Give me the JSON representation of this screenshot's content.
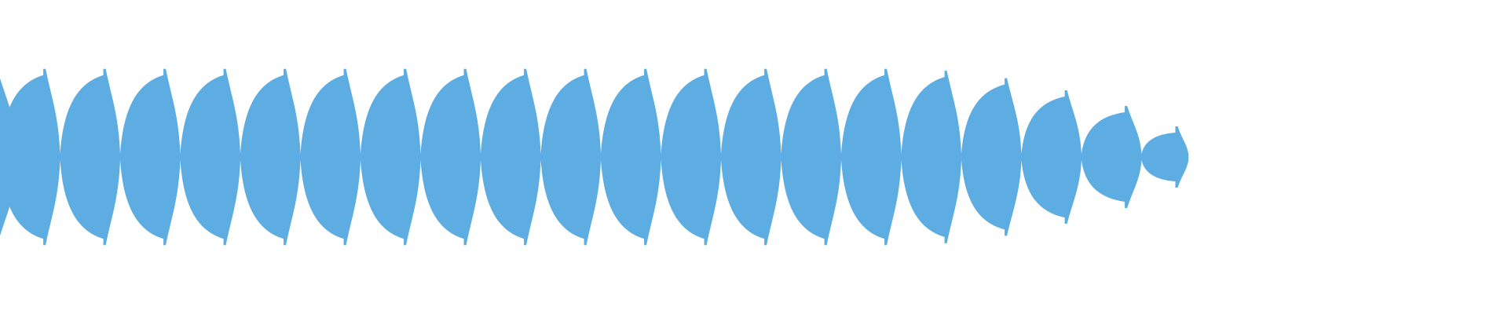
{
  "waveform": {
    "color": "#5dade2",
    "background": "#ffffff",
    "segment_count": 19,
    "segment_levels": [
      0.9,
      0.9,
      0.9,
      0.9,
      0.9,
      0.9,
      0.9,
      0.9,
      0.9,
      0.9,
      0.9,
      0.9,
      0.9,
      0.9,
      0.9,
      0.88,
      0.8,
      0.67,
      0.5,
      0.28
    ],
    "played_fraction": 0
  }
}
